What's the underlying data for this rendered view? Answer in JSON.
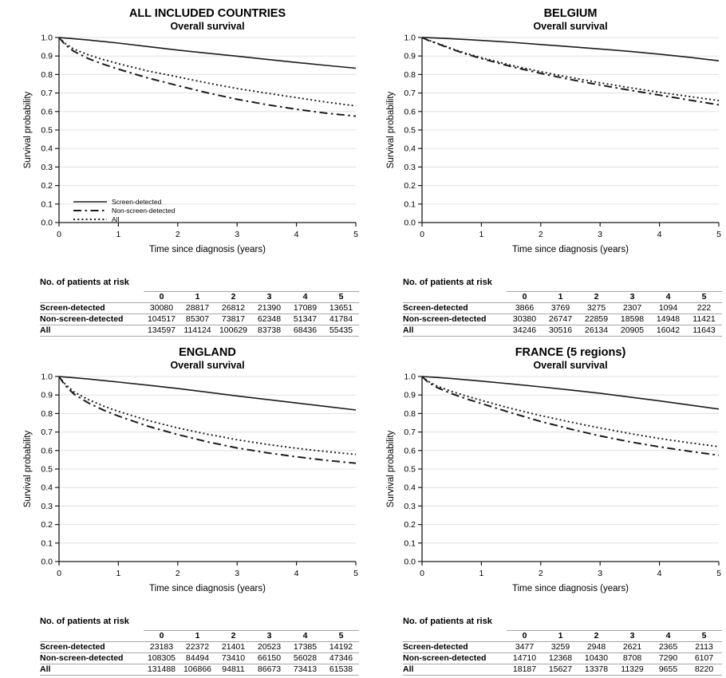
{
  "colors": {
    "background": "#ffffff",
    "line": "#1a1a1a",
    "grid": "#e0e0e0",
    "table_line": "#a6a6a6",
    "text": "#000000"
  },
  "legend": {
    "items": [
      {
        "label": "Screen-detected",
        "style": "solid"
      },
      {
        "label": "Non-screen-detected",
        "style": "dash-dot"
      },
      {
        "label": "All",
        "style": "dotted"
      }
    ]
  },
  "risk_table": {
    "caption": "No. of patients at risk",
    "columns": [
      "0",
      "1",
      "2",
      "3",
      "4",
      "5"
    ]
  },
  "chart_data": [
    {
      "type": "line",
      "title": "ALL INCLUDED COUNTRIES",
      "subtitle": "Overall survival",
      "xlabel": "Time since diagnosis (years)",
      "ylabel": "Survival probability",
      "xlim": [
        0,
        5
      ],
      "ylim": [
        0,
        1
      ],
      "x_ticks": [
        0,
        1,
        2,
        3,
        4,
        5
      ],
      "y_tick_step": 0.1,
      "grid": true,
      "show_legend": true,
      "x": [
        0,
        0.1,
        0.25,
        0.5,
        0.75,
        1,
        1.5,
        2,
        2.5,
        3,
        3.5,
        4,
        4.5,
        5
      ],
      "series": [
        {
          "name": "Screen-detected",
          "style": "solid",
          "values": [
            1.0,
            0.997,
            0.993,
            0.986,
            0.978,
            0.97,
            0.951,
            0.932,
            0.915,
            0.899,
            0.882,
            0.865,
            0.849,
            0.834
          ]
        },
        {
          "name": "Non-screen-detected",
          "style": "dash-dot",
          "values": [
            1.0,
            0.962,
            0.925,
            0.885,
            0.855,
            0.829,
            0.781,
            0.74,
            0.701,
            0.666,
            0.637,
            0.612,
            0.591,
            0.575
          ]
        },
        {
          "name": "All",
          "style": "dotted",
          "values": [
            1.0,
            0.968,
            0.937,
            0.905,
            0.88,
            0.858,
            0.819,
            0.787,
            0.754,
            0.724,
            0.699,
            0.675,
            0.651,
            0.63
          ]
        }
      ],
      "at_risk": [
        {
          "label": "Screen-detected",
          "values": [
            "30080",
            "28817",
            "26812",
            "21390",
            "17089",
            "13651"
          ]
        },
        {
          "label": "Non-screen-detected",
          "values": [
            "104517",
            "85307",
            "73817",
            "62348",
            "51347",
            "41784"
          ]
        },
        {
          "label": "All",
          "values": [
            "134597",
            "114124",
            "100629",
            "83738",
            "68436",
            "55435"
          ]
        }
      ]
    },
    {
      "type": "line",
      "title": "BELGIUM",
      "subtitle": "Overall survival",
      "xlabel": "Time since diagnosis (years)",
      "ylabel": "Survival probability",
      "xlim": [
        0,
        5
      ],
      "ylim": [
        0,
        1
      ],
      "x_ticks": [
        0,
        1,
        2,
        3,
        4,
        5
      ],
      "y_tick_step": 0.1,
      "grid": true,
      "show_legend": false,
      "x": [
        0,
        0.1,
        0.25,
        0.5,
        0.75,
        1,
        1.5,
        2,
        2.5,
        3,
        3.5,
        4,
        4.5,
        5
      ],
      "series": [
        {
          "name": "Screen-detected",
          "style": "solid",
          "values": [
            1.0,
            0.999,
            0.997,
            0.993,
            0.989,
            0.984,
            0.974,
            0.962,
            0.95,
            0.938,
            0.925,
            0.91,
            0.893,
            0.874
          ]
        },
        {
          "name": "Non-screen-detected",
          "style": "dash-dot",
          "values": [
            1.0,
            0.985,
            0.968,
            0.937,
            0.91,
            0.886,
            0.843,
            0.806,
            0.773,
            0.743,
            0.715,
            0.689,
            0.662,
            0.636
          ]
        },
        {
          "name": "All",
          "style": "dotted",
          "values": [
            1.0,
            0.986,
            0.97,
            0.94,
            0.914,
            0.891,
            0.85,
            0.815,
            0.784,
            0.755,
            0.729,
            0.704,
            0.681,
            0.659
          ]
        }
      ],
      "at_risk": [
        {
          "label": "Screen-detected",
          "values": [
            "3866",
            "3769",
            "3275",
            "2307",
            "1094",
            "222"
          ]
        },
        {
          "label": "Non-screen-detected",
          "values": [
            "30380",
            "26747",
            "22859",
            "18598",
            "14948",
            "11421"
          ]
        },
        {
          "label": "All",
          "values": [
            "34246",
            "30516",
            "26134",
            "20905",
            "16042",
            "11643"
          ]
        }
      ]
    },
    {
      "type": "line",
      "title": "ENGLAND",
      "subtitle": "Overall survival",
      "xlabel": "Time since diagnosis (years)",
      "ylabel": "Survival probability",
      "xlim": [
        0,
        5
      ],
      "ylim": [
        0,
        1
      ],
      "x_ticks": [
        0,
        1,
        2,
        3,
        4,
        5
      ],
      "y_tick_step": 0.1,
      "grid": true,
      "show_legend": false,
      "x": [
        0,
        0.1,
        0.25,
        0.5,
        0.75,
        1,
        1.5,
        2,
        2.5,
        3,
        3.5,
        4,
        4.5,
        5
      ],
      "series": [
        {
          "name": "Screen-detected",
          "style": "solid",
          "values": [
            1.0,
            0.997,
            0.993,
            0.986,
            0.978,
            0.97,
            0.953,
            0.935,
            0.915,
            0.895,
            0.876,
            0.857,
            0.838,
            0.819
          ]
        },
        {
          "name": "Non-screen-detected",
          "style": "dash-dot",
          "values": [
            1.0,
            0.953,
            0.905,
            0.856,
            0.818,
            0.786,
            0.731,
            0.686,
            0.647,
            0.614,
            0.588,
            0.566,
            0.547,
            0.531
          ]
        },
        {
          "name": "All",
          "style": "dotted",
          "values": [
            1.0,
            0.96,
            0.917,
            0.874,
            0.84,
            0.811,
            0.762,
            0.722,
            0.688,
            0.658,
            0.633,
            0.612,
            0.594,
            0.579
          ]
        }
      ],
      "at_risk": [
        {
          "label": "Screen-detected",
          "values": [
            "23183",
            "22372",
            "21401",
            "20523",
            "17385",
            "14192"
          ]
        },
        {
          "label": "Non-screen-detected",
          "values": [
            "108305",
            "84494",
            "73410",
            "66150",
            "56028",
            "47346"
          ]
        },
        {
          "label": "All",
          "values": [
            "131488",
            "106866",
            "94811",
            "86673",
            "73413",
            "61538"
          ]
        }
      ]
    },
    {
      "type": "line",
      "title": "FRANCE (5 regions)",
      "subtitle": "Overall survival",
      "xlabel": "Time since diagnosis (years)",
      "ylabel": "Survival probability",
      "xlim": [
        0,
        5
      ],
      "ylim": [
        0,
        1
      ],
      "x_ticks": [
        0,
        1,
        2,
        3,
        4,
        5
      ],
      "y_tick_step": 0.1,
      "grid": true,
      "show_legend": false,
      "x": [
        0,
        0.1,
        0.25,
        0.5,
        0.75,
        1,
        1.5,
        2,
        2.5,
        3,
        3.5,
        4,
        4.5,
        5
      ],
      "series": [
        {
          "name": "Screen-detected",
          "style": "solid",
          "values": [
            1.0,
            0.998,
            0.995,
            0.989,
            0.982,
            0.975,
            0.96,
            0.944,
            0.927,
            0.909,
            0.889,
            0.868,
            0.846,
            0.824
          ]
        },
        {
          "name": "Non-screen-detected",
          "style": "dash-dot",
          "values": [
            1.0,
            0.97,
            0.941,
            0.907,
            0.879,
            0.854,
            0.804,
            0.757,
            0.716,
            0.679,
            0.647,
            0.62,
            0.596,
            0.574
          ]
        },
        {
          "name": "All",
          "style": "dotted",
          "values": [
            1.0,
            0.974,
            0.949,
            0.919,
            0.894,
            0.871,
            0.827,
            0.789,
            0.754,
            0.722,
            0.692,
            0.665,
            0.642,
            0.621
          ]
        }
      ],
      "at_risk": [
        {
          "label": "Screen-detected",
          "values": [
            "3477",
            "3259",
            "2948",
            "2621",
            "2365",
            "2113"
          ]
        },
        {
          "label": "Non-screen-detected",
          "values": [
            "14710",
            "12368",
            "10430",
            "8708",
            "7290",
            "6107"
          ]
        },
        {
          "label": "All",
          "values": [
            "18187",
            "15627",
            "13378",
            "11329",
            "9655",
            "8220"
          ]
        }
      ]
    }
  ]
}
